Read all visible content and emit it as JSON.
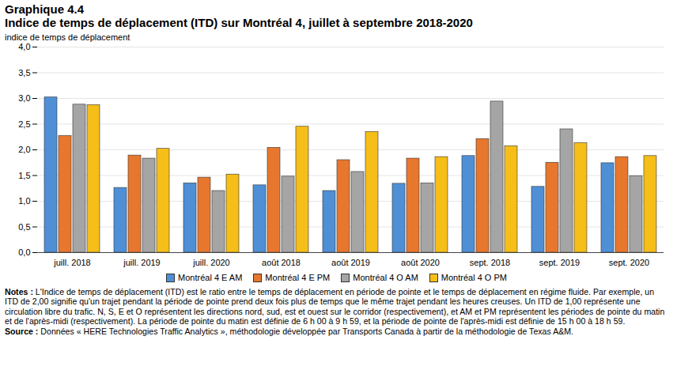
{
  "chart_data": {
    "type": "bar",
    "title": "Graphique 4.4",
    "subtitle": "Indice de temps de déplacement (ITD) sur Montréal 4, juillet à septembre 2018-2020",
    "y_label": "indice de temps de déplacement",
    "categories": [
      "juill. 2018",
      "juill. 2019",
      "juill. 2020",
      "août 2018",
      "août 2019",
      "août 2020",
      "sept. 2018",
      "sept. 2019",
      "sept. 2020"
    ],
    "series": [
      {
        "name": "Montréal 4 E AM",
        "color": "#4f8fd6",
        "values": [
          3.02,
          1.26,
          1.35,
          1.31,
          1.2,
          1.34,
          1.88,
          1.28,
          1.74
        ]
      },
      {
        "name": "Montréal 4 E PM",
        "color": "#e8772e",
        "values": [
          2.27,
          1.89,
          1.46,
          2.04,
          1.8,
          1.83,
          2.21,
          1.75,
          1.86
        ]
      },
      {
        "name": "Montréal 4 O AM",
        "color": "#a5a5a5",
        "values": [
          2.88,
          1.83,
          1.2,
          1.48,
          1.57,
          1.35,
          2.94,
          2.4,
          1.49
        ]
      },
      {
        "name": "Montréal 4 O PM",
        "color": "#f5be18",
        "values": [
          2.87,
          2.02,
          1.52,
          2.45,
          2.35,
          1.86,
          2.07,
          2.13,
          1.88
        ]
      }
    ],
    "ylim": [
      0,
      4
    ],
    "yticks": [
      {
        "value": 0,
        "label": "0,0"
      },
      {
        "value": 0.5,
        "label": "0,5"
      },
      {
        "value": 1,
        "label": "1,0"
      },
      {
        "value": 1.5,
        "label": "1,5"
      },
      {
        "value": 2,
        "label": "2,0"
      },
      {
        "value": 2.5,
        "label": "2,5"
      },
      {
        "value": 3,
        "label": "3,0"
      },
      {
        "value": 3.5,
        "label": "3,5"
      },
      {
        "value": 4,
        "label": "4,0"
      }
    ],
    "grid": true,
    "legend": "bottom",
    "notes_label": "Notes :",
    "notes": "L'Indice de temps de déplacement (ITD) est le ratio entre le temps de déplacement en période de pointe et le temps de déplacement en régime fluide. Par exemple, un ITD de 2,00 signifie qu'un trajet pendant la période de pointe prend deux fois plus de temps que le même trajet pendant les heures creuses. Un ITD de 1,00 représente une circulation libre du trafic. N, S, E et O représentent les directions nord, sud, est et ouest sur le corridor (respectivement), et AM et PM représentent les périodes de pointe du matin et de l'après-midi (respectivement). La période de pointe du matin est définie de 6 h 00 à 9 h 59, et la période de pointe de l'après-midi est définie de 15 h 00 à 18 h 59.",
    "source_label": "Source :",
    "source": "Données « HERE Technologies Traffic Analytics », méthodologie développée par Transports Canada à partir de la méthodologie de Texas A&M."
  }
}
